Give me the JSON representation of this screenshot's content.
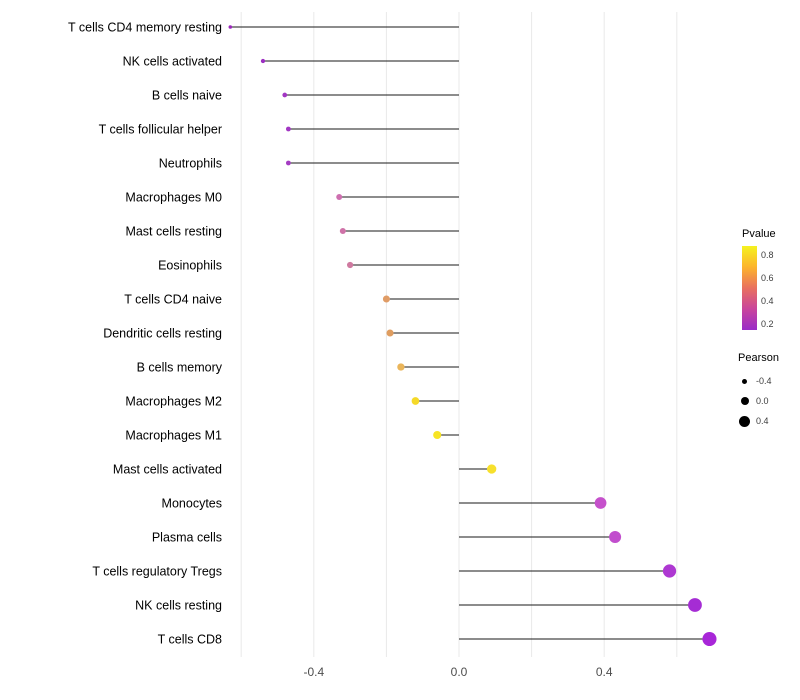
{
  "chart_data": {
    "type": "lollipop",
    "title": "",
    "xlabel": "",
    "ylabel": "",
    "xlim": [
      -0.68,
      0.76
    ],
    "grid_on": true,
    "grid_values": [
      -0.6,
      -0.4,
      -0.2,
      0,
      0.2,
      0.4,
      0.6
    ],
    "x_ticks": [
      {
        "value": -0.4,
        "label": "-0.4"
      },
      {
        "value": 0.0,
        "label": "0.0"
      },
      {
        "value": 0.4,
        "label": "0.4"
      }
    ],
    "categories": [
      "T cells CD4 memory resting",
      "NK cells activated",
      "B cells naive",
      "T cells follicular helper",
      "Neutrophils",
      "Macrophages M0",
      "Mast cells resting",
      "Eosinophils",
      "T cells CD4 naive",
      "Dendritic cells resting",
      "B cells memory",
      "Macrophages M2",
      "Macrophages M1",
      "Mast cells activated",
      "Monocytes",
      "Plasma cells",
      "T cells regulatory Tregs",
      "NK cells resting",
      "T cells CD8"
    ],
    "series": [
      {
        "name": "Pearson",
        "values": [
          -0.63,
          -0.54,
          -0.48,
          -0.47,
          -0.47,
          -0.33,
          -0.32,
          -0.3,
          -0.2,
          -0.19,
          -0.16,
          -0.12,
          -0.06,
          0.09,
          0.39,
          0.43,
          0.58,
          0.65,
          0.69
        ]
      }
    ],
    "pvalues": [
      0.06,
      0.09,
      0.12,
      0.12,
      0.13,
      0.44,
      0.45,
      0.48,
      0.6,
      0.6,
      0.64,
      0.8,
      0.84,
      0.82,
      0.22,
      0.2,
      0.13,
      0.1,
      0.08
    ],
    "point_colors": [
      "#9b27bb",
      "#9c2fc2",
      "#a237c3",
      "#a237c3",
      "#a43cc2",
      "#ce6fb0",
      "#cf72a8",
      "#cf7aa0",
      "#e09c66",
      "#df9d60",
      "#eab55a",
      "#f5d928",
      "#f7e424",
      "#f7e02c",
      "#c551cb",
      "#c14ecd",
      "#ae38d2",
      "#a52cd4",
      "#a826d8"
    ],
    "legend": {
      "color_title": "Pvalue",
      "color_ticks": [
        "0.8",
        "0.6",
        "0.4",
        "0.2"
      ],
      "gradient": [
        "#f5f21f",
        "#fcb42c",
        "#e9705f",
        "#c9459c",
        "#9a2bc8"
      ],
      "size_title": "Pearson",
      "size_ticks": [
        "-0.4",
        "0.0",
        "0.4"
      ]
    }
  }
}
